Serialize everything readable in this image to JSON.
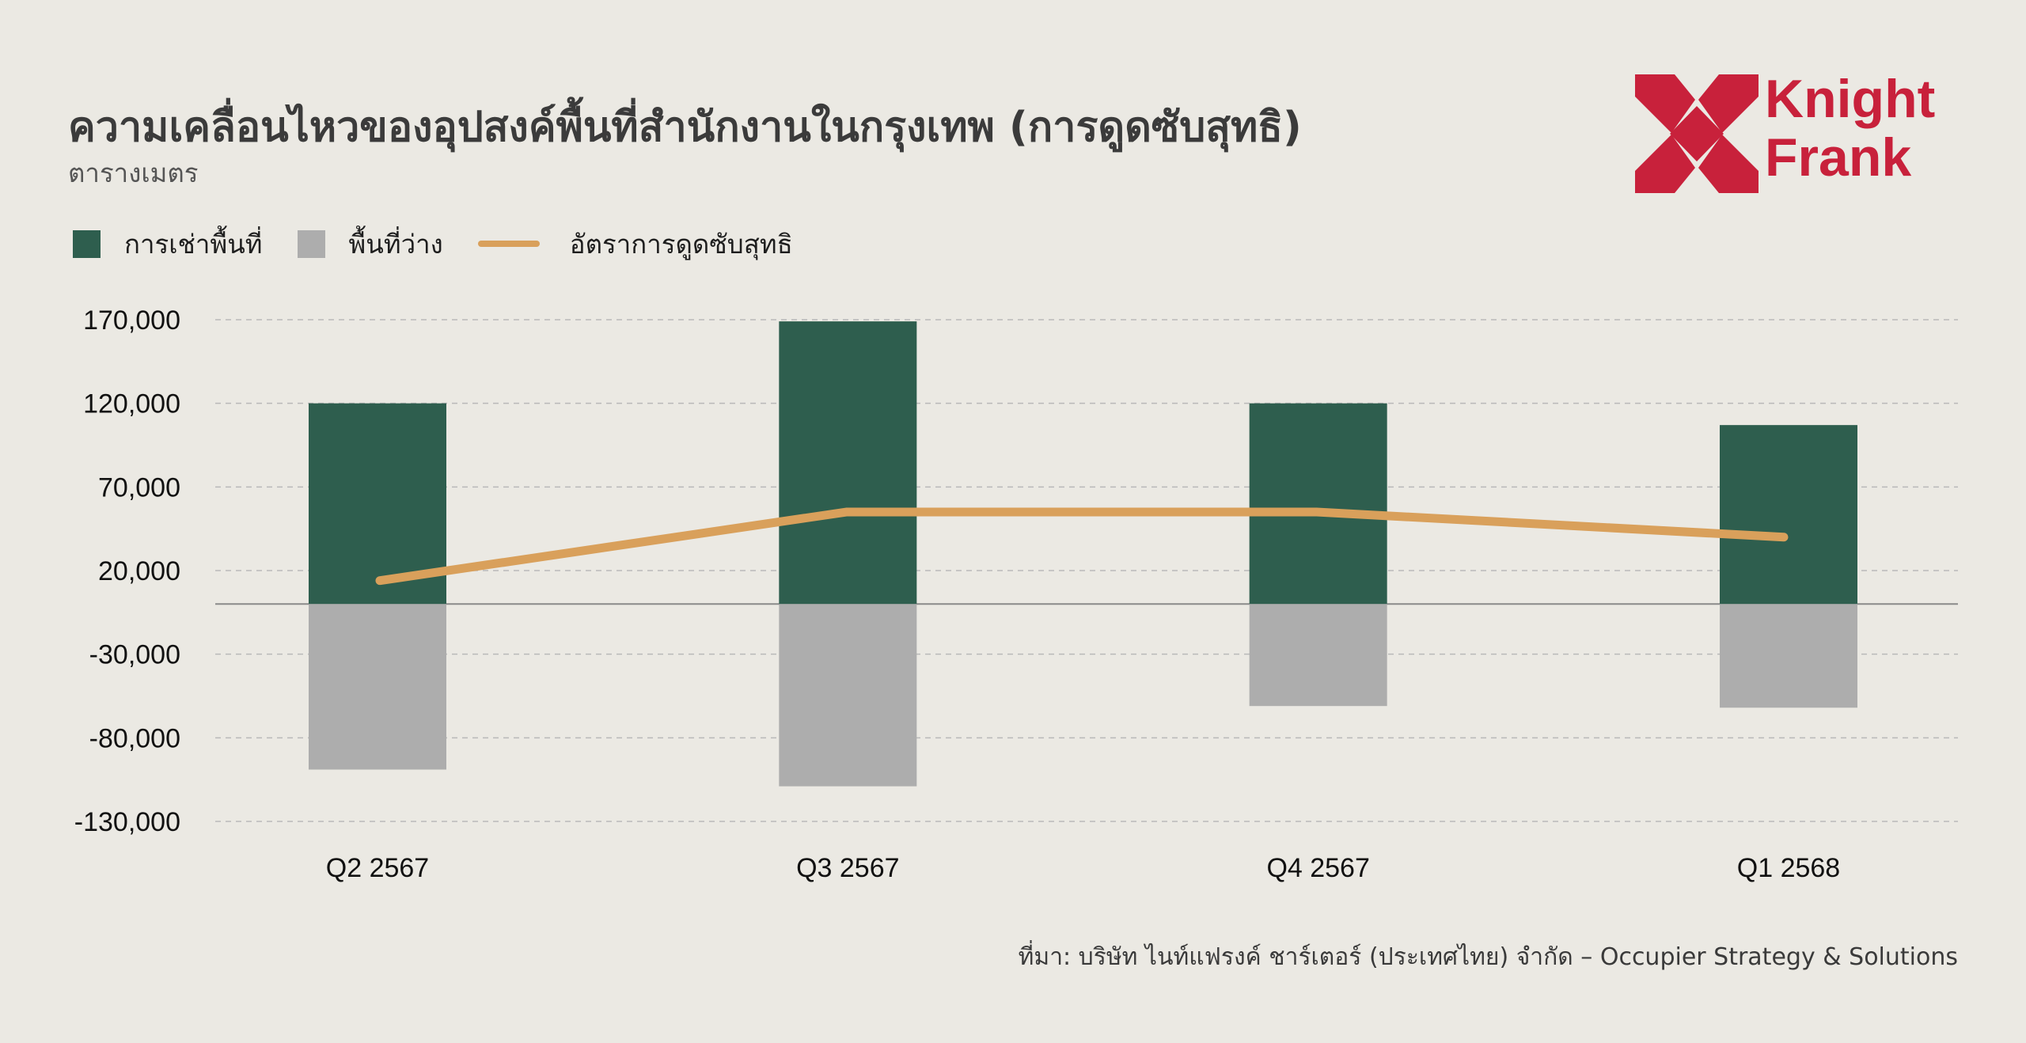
{
  "header": {
    "title": "ความเคลื่อนไหวของอุปสงค์พื้นที่สำนักงานในกรุงเทพ (การดูดซับสุทธิ)",
    "subtitle": "ตารางเมตร"
  },
  "logo": {
    "line1": "Knight",
    "line2": "Frank",
    "color": "#c8213b"
  },
  "legend": {
    "items": [
      {
        "label": "การเช่าพื้นที่",
        "color": "#2e5e4e",
        "kind": "box"
      },
      {
        "label": "พื้นที่ว่าง",
        "color": "#adadad",
        "kind": "box"
      },
      {
        "label": "อัตราการดูดซับสุทธิ",
        "color": "#d9a05b",
        "kind": "line"
      }
    ]
  },
  "source": "ที่มา: บริษัท ไนท์แฟรงค์ ชาร์เตอร์ (ประเทศไทย) จำกัด – Occupier Strategy & Solutions",
  "chart_data": {
    "type": "bar",
    "categories": [
      "Q2 2567",
      "Q3 2567",
      "Q4 2567",
      "Q1 2568"
    ],
    "series": [
      {
        "name": "การเช่าพื้นที่",
        "type": "bar",
        "color": "#2e5e4e",
        "values": [
          120000,
          169000,
          120000,
          107000
        ]
      },
      {
        "name": "พื้นที่ว่าง",
        "type": "bar",
        "color": "#adadad",
        "values": [
          -99000,
          -109000,
          -61000,
          -62000
        ]
      },
      {
        "name": "อัตราการดูดซับสุทธิ",
        "type": "line",
        "color": "#d9a05b",
        "values": [
          14000,
          55000,
          55000,
          40000
        ]
      }
    ],
    "ylim": [
      -130000,
      170000
    ],
    "yticks": [
      170000,
      120000,
      70000,
      20000,
      -30000,
      -80000,
      -130000
    ],
    "ytick_labels": [
      "170,000",
      "120,000",
      "70,000",
      "20,000",
      "-30,000",
      "-80,000",
      "-130,000"
    ],
    "grid": true,
    "legend_position": "top-left"
  }
}
